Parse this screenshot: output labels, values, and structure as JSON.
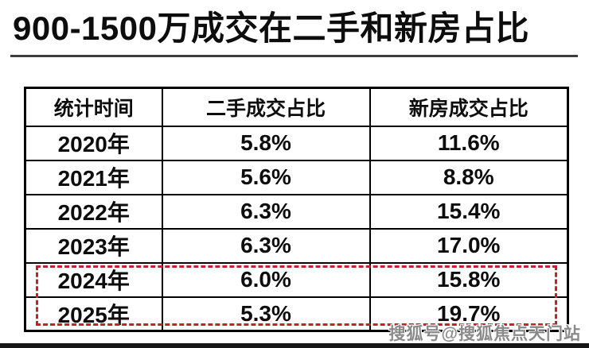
{
  "page": {
    "title": "900-1500万成交在二手和新房占比",
    "watermark": "搜狐号@搜狐焦点天门站"
  },
  "colors": {
    "title_text": "#0d0d0d",
    "table_border": "#000000",
    "highlight_red": "#c2232b",
    "watermark_gray": "#8a8a8a",
    "background": "#ffffff"
  },
  "chart_data": {
    "type": "table",
    "title": "900-1500万成交在二手和新房占比",
    "columns": [
      "统计时间",
      "二手成交占比",
      "新房成交占比"
    ],
    "rows": [
      [
        "2020年",
        "5.8%",
        "11.6%"
      ],
      [
        "2021年",
        "5.6%",
        "8.8%"
      ],
      [
        "2022年",
        "6.3%",
        "15.4%"
      ],
      [
        "2023年",
        "6.3%",
        "17.0%"
      ],
      [
        "2024年",
        "6.0%",
        "15.8%"
      ],
      [
        "2025年",
        "5.3%",
        "19.7%"
      ]
    ],
    "highlighted_row_indices": [
      4,
      5
    ],
    "highlight_style": "red-dashed-outline",
    "notes": "rows for 2024年 and 2025年 are outlined with a red dashed rectangle"
  }
}
